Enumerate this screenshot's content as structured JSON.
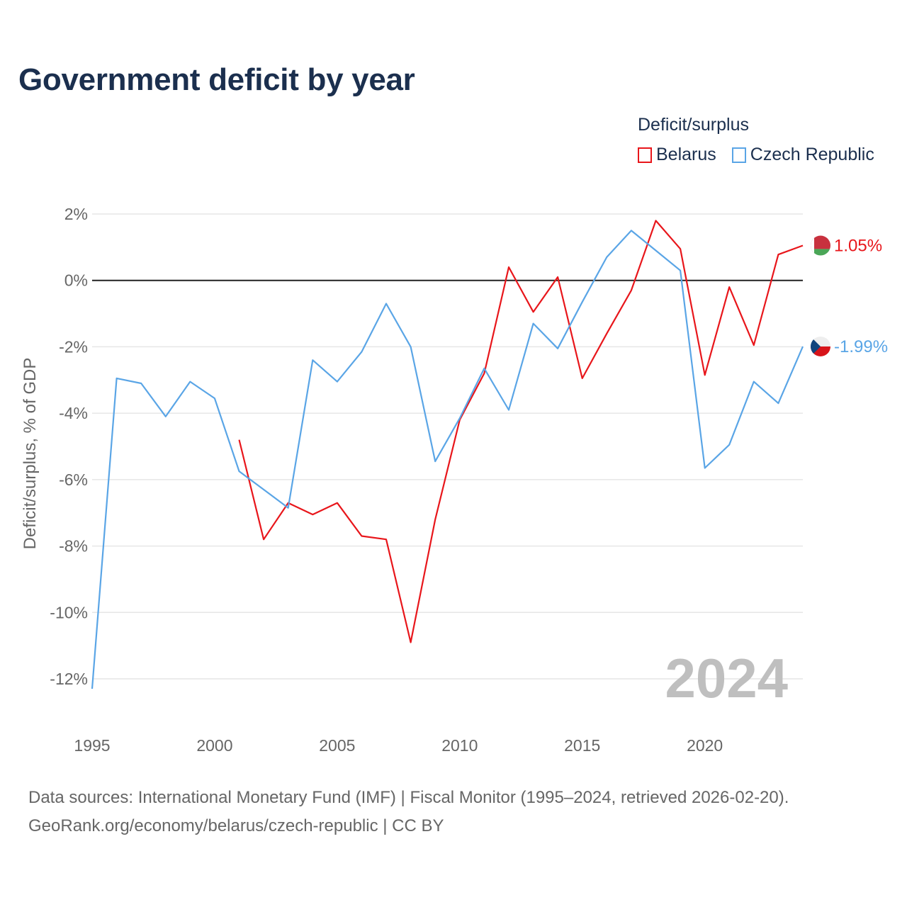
{
  "title": "Government deficit by year",
  "legend": {
    "title": "Deficit/surplus",
    "items": [
      {
        "name": "Belarus",
        "color": "#e8161b"
      },
      {
        "name": "Czech Republic",
        "color": "#5aa5e6"
      }
    ]
  },
  "watermark_year": "2024",
  "footer": {
    "line1": "Data sources: International Monetary Fund (IMF) | Fiscal Monitor (1995–2024, retrieved 2026-02-20).",
    "line2": "GeoRank.org/economy/belarus/czech-republic | CC BY"
  },
  "chart_data": {
    "type": "line",
    "title": "Government deficit by year",
    "xlabel": "",
    "ylabel": "Deficit/surplus, % of GDP",
    "xlim": [
      1995,
      2024
    ],
    "ylim": [
      -13,
      2.5
    ],
    "x_ticks": [
      1995,
      2000,
      2005,
      2010,
      2015,
      2020
    ],
    "x_tick_labels": [
      "1995",
      "2000",
      "2005",
      "2010",
      "2015",
      "2020"
    ],
    "y_ticks": [
      2,
      0,
      -2,
      -4,
      -6,
      -8,
      -10,
      -12
    ],
    "y_tick_labels": [
      "2%",
      "0%",
      "-2%",
      "-4%",
      "-6%",
      "-8%",
      "-10%",
      "-12%"
    ],
    "x": [
      1995,
      1996,
      1997,
      1998,
      1999,
      2000,
      2001,
      2002,
      2003,
      2004,
      2005,
      2006,
      2007,
      2008,
      2009,
      2010,
      2011,
      2012,
      2013,
      2014,
      2015,
      2016,
      2017,
      2018,
      2019,
      2020,
      2021,
      2022,
      2023,
      2024
    ],
    "series": [
      {
        "name": "Belarus",
        "color": "#e8161b",
        "end_label": "1.05%",
        "values": [
          null,
          null,
          null,
          null,
          null,
          null,
          -4.8,
          -7.8,
          -6.7,
          -7.05,
          -6.7,
          -7.7,
          -7.8,
          -10.9,
          -7.2,
          -4.2,
          -2.8,
          0.4,
          -0.95,
          0.1,
          -2.95,
          -1.6,
          -0.3,
          1.8,
          0.95,
          -2.85,
          -0.2,
          -1.95,
          0.78,
          1.05
        ]
      },
      {
        "name": "Czech Republic",
        "color": "#5aa5e6",
        "end_label": "-1.99%",
        "values": [
          -12.3,
          -2.95,
          -3.1,
          -4.1,
          -3.05,
          -3.55,
          -5.75,
          -6.3,
          -6.85,
          -2.4,
          -3.05,
          -2.15,
          -0.7,
          -2.0,
          -5.45,
          -4.15,
          -2.65,
          -3.9,
          -1.3,
          -2.05,
          -0.65,
          0.7,
          1.5,
          0.9,
          0.3,
          -5.65,
          -4.95,
          -3.05,
          -3.7,
          -1.99
        ]
      }
    ],
    "zero_line": true,
    "grid": true
  }
}
